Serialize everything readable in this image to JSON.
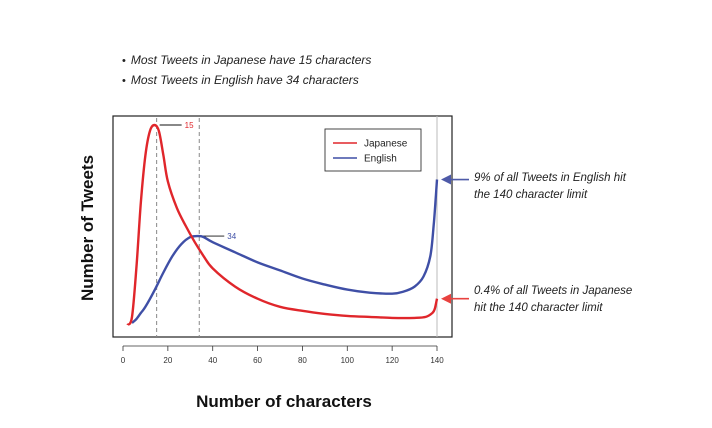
{
  "bullets": [
    "Most Tweets in Japanese have 15 characters",
    "Most Tweets in English have 34 characters"
  ],
  "annotations": {
    "english_line1": "9% of all Tweets in English hit",
    "english_line2": "the 140 character limit",
    "japanese_line1": "0.4% of all Tweets in Japanese",
    "japanese_line2": "hit the 140 character limit"
  },
  "chart_data": {
    "type": "line",
    "xlabel": "Number of characters",
    "ylabel": "Number of Tweets",
    "xlim": [
      0,
      145
    ],
    "ylim": [
      0,
      100
    ],
    "xticks": [
      0,
      20,
      40,
      60,
      80,
      100,
      120,
      140
    ],
    "y_tick_labels": false,
    "grid": false,
    "legend_position": "top-right",
    "series": [
      {
        "name": "Japanese",
        "color": "#e0262b",
        "x": [
          2,
          4,
          6,
          8,
          10,
          12,
          14,
          16,
          18,
          20,
          24,
          28,
          32,
          36,
          40,
          50,
          60,
          70,
          80,
          90,
          100,
          110,
          120,
          130,
          135,
          138,
          139,
          140
        ],
        "y": [
          1,
          5,
          30,
          62,
          85,
          97,
          100,
          97,
          85,
          72,
          59,
          50,
          42,
          35,
          29,
          20,
          14,
          10,
          8,
          6.5,
          5.5,
          5,
          4.5,
          4.5,
          5,
          7,
          9,
          14
        ]
      },
      {
        "name": "English",
        "color": "#3f4fa6",
        "x": [
          4,
          6,
          8,
          10,
          14,
          18,
          22,
          26,
          30,
          34,
          36,
          40,
          50,
          60,
          70,
          80,
          90,
          100,
          110,
          120,
          125,
          130,
          134,
          137,
          138.5,
          139.5,
          140
        ],
        "y": [
          2,
          4,
          7,
          10,
          18,
          27,
          35,
          41,
          44.5,
          45,
          44.5,
          42,
          37,
          32,
          28,
          24,
          21,
          18.5,
          17,
          16.5,
          17.5,
          20,
          25,
          35,
          50,
          65,
          73
        ]
      }
    ],
    "peak_markers": [
      {
        "x": 15,
        "label": "15",
        "color": "#e0262b"
      },
      {
        "x": 34,
        "label": "34",
        "color": "#3f4fa6"
      }
    ],
    "reference_x": 140,
    "annotation_arrow_colors": {
      "english": "#4e5aa8",
      "japanese": "#e8423f"
    }
  }
}
